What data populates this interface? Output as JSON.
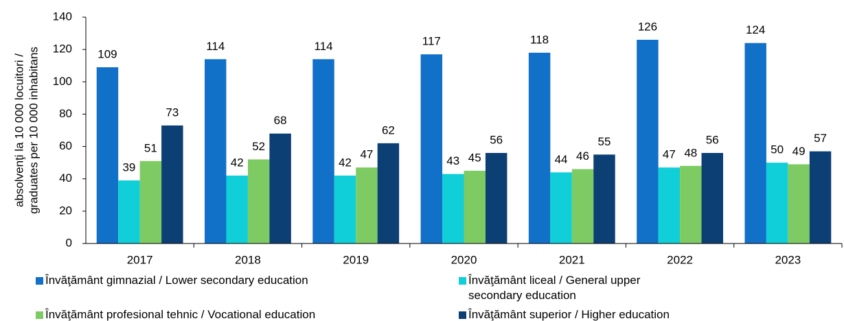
{
  "chart_data": {
    "type": "bar",
    "ylabel": [
      "absolvenţi la 10 000 locuitori /",
      "graduates per 10 000 inhabitans"
    ],
    "categories": [
      "2017",
      "2018",
      "2019",
      "2020",
      "2021",
      "2022",
      "2023"
    ],
    "series": [
      {
        "name": "Învăţământ gimnazial / Lower secondary education",
        "color": "#1170c8",
        "values": [
          109,
          114,
          114,
          117,
          118,
          126,
          124
        ]
      },
      {
        "name": "Învăţământ liceal / General upper secondary education",
        "color": "#11cfd9",
        "values": [
          39,
          42,
          42,
          43,
          44,
          47,
          50
        ]
      },
      {
        "name": "Învăţământ profesional tehnic / Vocational education",
        "color": "#7ecb63",
        "values": [
          51,
          52,
          47,
          45,
          46,
          48,
          49
        ]
      },
      {
        "name": "Învăţământ superior / Higher education",
        "color": "#0c3f73",
        "values": [
          73,
          68,
          62,
          56,
          55,
          56,
          57
        ]
      }
    ],
    "ylim": [
      0,
      140
    ],
    "yticks": [
      0,
      20,
      40,
      60,
      80,
      100,
      120,
      140
    ],
    "grid": false
  }
}
